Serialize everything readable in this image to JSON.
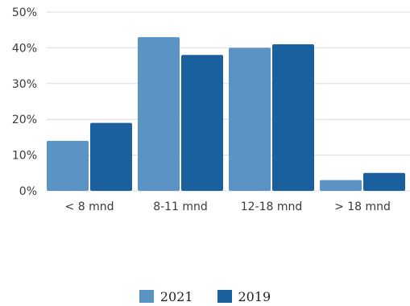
{
  "chart_data": {
    "type": "bar",
    "categories": [
      "< 8 mnd",
      "8-11 mnd",
      "12-18 mnd",
      "> 18 mnd"
    ],
    "series": [
      {
        "name": "2021",
        "values": [
          14,
          43,
          40,
          3
        ],
        "color": "#5b93c5"
      },
      {
        "name": "2019",
        "values": [
          19,
          38,
          41,
          5
        ],
        "color": "#1a5f9e"
      }
    ],
    "ylim": [
      0,
      50
    ],
    "yticks": [
      0,
      10,
      20,
      30,
      40,
      50
    ],
    "ytick_labels": [
      "0%",
      "10%",
      "20%",
      "30%",
      "40%",
      "50%"
    ],
    "grid": true,
    "legend_position": "bottom-center",
    "title": "",
    "xlabel": "",
    "ylabel": ""
  }
}
